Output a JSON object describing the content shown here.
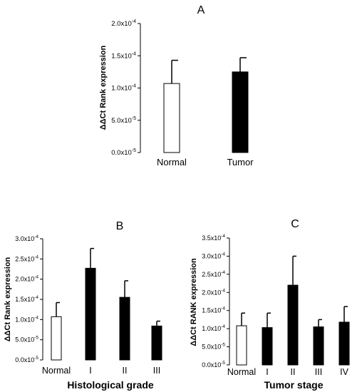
{
  "chart_data": [
    {
      "panel_label": "A",
      "type": "bar",
      "categories": [
        "Normal",
        "Tumor"
      ],
      "values": [
        0.000107,
        0.000125
      ],
      "errors": [
        3.6e-05,
        2.2e-05
      ],
      "bar_colors": [
        "#ffffff",
        "#000000"
      ],
      "ylabel": "ΔΔCt Rank expression",
      "xlabel": "",
      "ylim": [
        0,
        0.0002
      ],
      "yticks": [
        0,
        5e-05,
        0.0001,
        0.00015,
        0.0002
      ],
      "ytick_labels": [
        {
          "mantissa": "0.0x10",
          "exp": "-5"
        },
        {
          "mantissa": "5.0x10",
          "exp": "-5"
        },
        {
          "mantissa": "1.0x10",
          "exp": "-4"
        },
        {
          "mantissa": "1.5x10",
          "exp": "-4"
        },
        {
          "mantissa": "2.0x10",
          "exp": "-4"
        }
      ],
      "grid": false
    },
    {
      "panel_label": "B",
      "type": "bar",
      "categories": [
        "Normal",
        "I",
        "II",
        "III"
      ],
      "values": [
        0.000107,
        0.000227,
        0.000155,
        8.4e-05
      ],
      "errors": [
        3.5e-05,
        4.9e-05,
        4.1e-05,
        1.2e-05
      ],
      "bar_colors": [
        "#ffffff",
        "#000000",
        "#000000",
        "#000000"
      ],
      "ylabel": "ΔΔCt Rank expression",
      "xlabel": "Histological grade",
      "ylim": [
        0,
        0.0003
      ],
      "yticks": [
        0,
        5e-05,
        0.0001,
        0.00015,
        0.0002,
        0.00025,
        0.0003
      ],
      "ytick_labels": [
        {
          "mantissa": "0.0x10",
          "exp": "-5"
        },
        {
          "mantissa": "5.0x10",
          "exp": "-5"
        },
        {
          "mantissa": "1.0x10",
          "exp": "-4"
        },
        {
          "mantissa": "1.5x10",
          "exp": "-4"
        },
        {
          "mantissa": "2.0x10",
          "exp": "-4"
        },
        {
          "mantissa": "2.5x10",
          "exp": "-4"
        },
        {
          "mantissa": "3.0x10",
          "exp": "-4"
        }
      ],
      "grid": false
    },
    {
      "panel_label": "C",
      "type": "bar",
      "categories": [
        "Normal",
        "I",
        "II",
        "III",
        "IV"
      ],
      "values": [
        0.000108,
        0.000103,
        0.00022,
        0.000105,
        0.000118
      ],
      "errors": [
        3.5e-05,
        4e-05,
        8e-05,
        2e-05,
        4.3e-05
      ],
      "bar_colors": [
        "#ffffff",
        "#000000",
        "#000000",
        "#000000",
        "#000000"
      ],
      "ylabel": "ΔΔCt RANK expression",
      "xlabel": "Tumor stage",
      "ylim": [
        0,
        0.00035
      ],
      "yticks": [
        0,
        5e-05,
        0.0001,
        0.00015,
        0.0002,
        0.00025,
        0.0003,
        0.00035
      ],
      "ytick_labels": [
        {
          "mantissa": "0.0x10",
          "exp": "-5"
        },
        {
          "mantissa": "5.0x10",
          "exp": "-5"
        },
        {
          "mantissa": "1.0x10",
          "exp": "-4"
        },
        {
          "mantissa": "1.5x10",
          "exp": "-4"
        },
        {
          "mantissa": "2.0x10",
          "exp": "-4"
        },
        {
          "mantissa": "2.5x10",
          "exp": "-4"
        },
        {
          "mantissa": "3.0x10",
          "exp": "-4"
        },
        {
          "mantissa": "3.5x10",
          "exp": "-4"
        }
      ],
      "grid": false
    }
  ]
}
